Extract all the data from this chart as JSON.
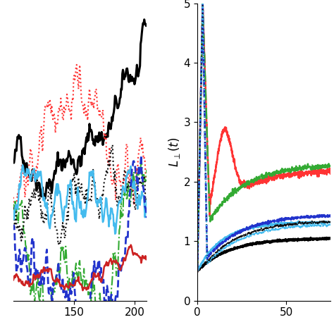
{
  "left_plot": {
    "xlim": [
      100,
      210
    ],
    "xticks": [
      150,
      200
    ],
    "lines": [
      {
        "color": "#000000",
        "style": "-",
        "lw": 2.2,
        "base_start": 2.8,
        "base_end": 4.8,
        "noise": 0.08
      },
      {
        "color": "#FF3333",
        "style": ":",
        "lw": 1.5,
        "base_start": 2.3,
        "base_end": 2.55,
        "noise": 0.12
      },
      {
        "color": "#33AA33",
        "style": "-.",
        "lw": 1.5,
        "base_start": 2.2,
        "base_end": 2.7,
        "noise": 0.13
      },
      {
        "color": "#111111",
        "style": ":",
        "lw": 1.5,
        "base_start": 2.15,
        "base_end": 2.3,
        "noise": 0.1
      },
      {
        "color": "#44BBEE",
        "style": "-",
        "lw": 1.8,
        "base_start": 2.1,
        "base_end": 2.25,
        "noise": 0.09
      },
      {
        "color": "#2233CC",
        "style": "--",
        "lw": 2.0,
        "base_start": 1.85,
        "base_end": 2.0,
        "noise": 0.12
      },
      {
        "color": "#CC2222",
        "style": "-",
        "lw": 1.8,
        "base_start": 1.1,
        "base_end": 1.4,
        "noise": 0.03
      }
    ]
  },
  "right_plot": {
    "xlim": [
      0,
      75
    ],
    "ylim": [
      0,
      5
    ],
    "xticks": [
      0,
      50
    ],
    "yticks": [
      0,
      1,
      2,
      3,
      4,
      5
    ],
    "ylabel": "L_{\\perp}(t)"
  }
}
